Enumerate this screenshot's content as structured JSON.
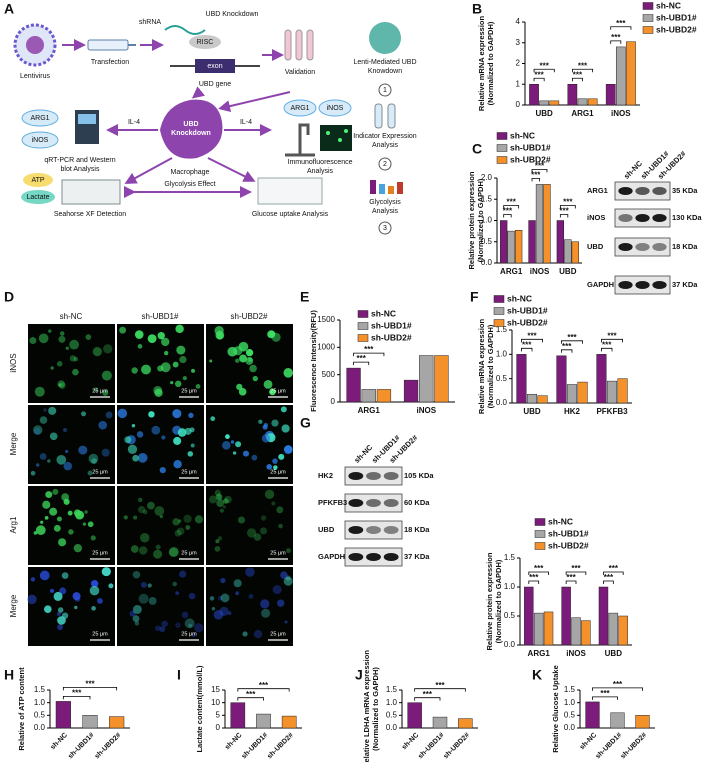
{
  "diagram": {
    "panel": "A",
    "lentivirus": "Lentivirus",
    "transfection": "Transfection",
    "shrna": "shRNA",
    "knockdown": "UBD Knockdown",
    "risc": "RISC",
    "exon": "exon",
    "gene": "UBD gene",
    "validation": "Validation",
    "steps": [
      {
        "number": "1",
        "lines": [
          "Lenti-Mediated UBD",
          "Knowdown"
        ]
      },
      {
        "number": "2",
        "lines": [
          "Indicator Expression",
          "Analysis"
        ]
      },
      {
        "number": "3",
        "lines": [
          "Glycolysis",
          "Analysis"
        ]
      }
    ],
    "cell_lines": [
      "UBD",
      "Knockdown"
    ],
    "macrophage": "Macrophage",
    "il4": "IL-4",
    "markers": [
      "ARG1",
      "iNOS"
    ],
    "qpcr": [
      "qRT-PCR and Western",
      "blot Analysis"
    ],
    "if": [
      "Immunofluorescence",
      "Analysis"
    ],
    "metabolites": [
      "ATP",
      "Lactate"
    ],
    "seahorse": "Seahorse XF Detection",
    "effect": "Glycolysis Effect",
    "glucose": "Glucose uptake Analysis"
  },
  "micrographs": {
    "panel": "D",
    "columns": [
      "sh-NC",
      "sh-UBD1#",
      "sh-UBD2#"
    ],
    "rows": [
      "iNOS",
      "Merge",
      "Arg1",
      "Merge"
    ],
    "scale_bar": "25 μm"
  },
  "blots": [
    {
      "lanes": [
        "sh-NC",
        "sh-UBD1#",
        "sh-UBD2#"
      ],
      "rows": [
        {
          "name": "ARG1",
          "size": "35 KDa"
        },
        {
          "name": "iNOS",
          "size": "130 KDa"
        },
        {
          "name": "UBD",
          "size": "18 KDa"
        },
        {
          "name": "GAPDH",
          "size": "37 KDa"
        }
      ]
    },
    {
      "lanes": [
        "sh-NC",
        "sh-UBD1#",
        "sh-UBD2#"
      ],
      "rows": [
        {
          "name": "HK2",
          "size": "105 KDa"
        },
        {
          "name": "PFKFB3",
          "size": "60 KDa"
        },
        {
          "name": "UBD",
          "size": "18 KDa"
        },
        {
          "name": "GAPDH",
          "size": "37 KDa"
        }
      ]
    }
  ],
  "chart_data": [
    {
      "panel": "B",
      "type": "bar",
      "ylabel": [
        "Relative mRNA expression",
        "(Normalized to GAPDH)"
      ],
      "categories": [
        "UBD",
        "ARG1",
        "iNOS"
      ],
      "series": [
        {
          "name": "sh-NC",
          "color": "#7b1c7b",
          "values": [
            1.0,
            1.0,
            1.0
          ]
        },
        {
          "name": "sh-UBD1#",
          "color": "#a6a6a6",
          "values": [
            0.2,
            0.3,
            2.8
          ]
        },
        {
          "name": "sh-UBD2#",
          "color": "#f5912a",
          "values": [
            0.2,
            0.3,
            3.05
          ]
        }
      ],
      "ylim": [
        0,
        4
      ],
      "yticks": [
        0,
        1,
        2,
        3,
        4
      ],
      "annotations": [
        {
          "text": "***",
          "category": 0,
          "bars": [
            0,
            1
          ]
        },
        {
          "text": "***",
          "category": 0,
          "bars": [
            0,
            2
          ]
        },
        {
          "text": "***",
          "category": 1,
          "bars": [
            0,
            1
          ]
        },
        {
          "text": "***",
          "category": 1,
          "bars": [
            0,
            2
          ]
        },
        {
          "text": "***",
          "category": 2,
          "bars": [
            0,
            1
          ]
        },
        {
          "text": "***",
          "category": 2,
          "bars": [
            0,
            2
          ]
        }
      ]
    },
    {
      "panel": "C",
      "type": "bar",
      "ylabel": [
        "Relative protein expression",
        "(Normalized to GAPDH)"
      ],
      "categories": [
        "ARG1",
        "iNOS",
        "UBD"
      ],
      "series": [
        {
          "name": "sh-NC",
          "color": "#7b1c7b",
          "values": [
            1.0,
            1.0,
            1.0
          ]
        },
        {
          "name": "sh-UBD1#",
          "color": "#a6a6a6",
          "values": [
            0.75,
            1.85,
            0.55
          ]
        },
        {
          "name": "sh-UBD2#",
          "color": "#f5912a",
          "values": [
            0.77,
            1.85,
            0.5
          ]
        }
      ],
      "ylim": [
        0,
        2
      ],
      "yticks": [
        {
          "value": 0,
          "label": "0.0"
        },
        0.5,
        {
          "value": 1,
          "label": "1.0"
        },
        1.5,
        {
          "value": 2,
          "label": "2.0"
        }
      ],
      "annotations": [
        {
          "text": "***",
          "category": 0,
          "bars": [
            0,
            1
          ]
        },
        {
          "text": "***",
          "category": 0,
          "bars": [
            0,
            2
          ]
        },
        {
          "text": "***",
          "category": 1,
          "bars": [
            0,
            1
          ]
        },
        {
          "text": "***",
          "category": 1,
          "bars": [
            0,
            2
          ]
        },
        {
          "text": "***",
          "category": 2,
          "bars": [
            0,
            1
          ]
        },
        {
          "text": "***",
          "category": 2,
          "bars": [
            0,
            2
          ]
        }
      ]
    },
    {
      "panel": "E",
      "type": "bar",
      "ylabel": [
        "Fluorescence Intensity(RFU)"
      ],
      "categories": [
        "ARG1",
        "iNOS"
      ],
      "series": [
        {
          "name": "sh-NC",
          "color": "#7b1c7b",
          "values": [
            620,
            400
          ]
        },
        {
          "name": "sh-UBD1#",
          "color": "#a6a6a6",
          "values": [
            230,
            850
          ]
        },
        {
          "name": "sh-UBD2#",
          "color": "#f5912a",
          "values": [
            230,
            850
          ]
        }
      ],
      "ylim": [
        0,
        1500
      ],
      "yticks": [
        0,
        500,
        1000,
        1500
      ],
      "annotations": [
        {
          "text": "***",
          "category": 0,
          "bars": [
            0,
            1
          ]
        },
        {
          "text": "***",
          "category": 0,
          "bars": [
            0,
            2
          ]
        }
      ]
    },
    {
      "panel": "F",
      "type": "bar",
      "ylabel": [
        "Relative mRNA expression",
        "(Normalized to GAPDH)"
      ],
      "categories": [
        "UBD",
        "HK2",
        "PFKFB3"
      ],
      "series": [
        {
          "name": "sh-NC",
          "color": "#7b1c7b",
          "values": [
            1.0,
            0.97,
            1.0
          ]
        },
        {
          "name": "sh-UBD1#",
          "color": "#a6a6a6",
          "values": [
            0.18,
            0.38,
            0.45
          ]
        },
        {
          "name": "sh-UBD2#",
          "color": "#f5912a",
          "values": [
            0.15,
            0.43,
            0.5
          ]
        }
      ],
      "ylim": [
        0,
        1.5
      ],
      "yticks": [
        {
          "value": 0,
          "label": "0.0"
        },
        0.5,
        {
          "value": 1,
          "label": "1.0"
        },
        1.5
      ],
      "annotations": [
        {
          "text": "***",
          "category": 0,
          "bars": [
            0,
            1
          ]
        },
        {
          "text": "***",
          "category": 0,
          "bars": [
            0,
            2
          ]
        },
        {
          "text": "***",
          "category": 1,
          "bars": [
            0,
            1
          ]
        },
        {
          "text": "***",
          "category": 1,
          "bars": [
            0,
            2
          ]
        },
        {
          "text": "***",
          "category": 2,
          "bars": [
            0,
            1
          ]
        },
        {
          "text": "***",
          "category": 2,
          "bars": [
            0,
            2
          ]
        }
      ]
    },
    {
      "panel": "G",
      "type": "bar",
      "ylabel": [
        "Relative protein expression",
        "(Normalized to GAPDH)"
      ],
      "categories": [
        "ARG1",
        "iNOS",
        "UBD"
      ],
      "series": [
        {
          "name": "sh-NC",
          "color": "#7b1c7b",
          "values": [
            1.0,
            1.0,
            1.0
          ]
        },
        {
          "name": "sh-UBD1#",
          "color": "#a6a6a6",
          "values": [
            0.55,
            0.47,
            0.55
          ]
        },
        {
          "name": "sh-UBD2#",
          "color": "#f5912a",
          "values": [
            0.57,
            0.42,
            0.5
          ]
        }
      ],
      "ylim": [
        0,
        1.5
      ],
      "yticks": [
        {
          "value": 0,
          "label": "0.0"
        },
        0.5,
        {
          "value": 1,
          "label": "1.0"
        },
        1.5
      ],
      "annotations": [
        {
          "text": "***",
          "category": 0,
          "bars": [
            0,
            1
          ]
        },
        {
          "text": "***",
          "category": 0,
          "bars": [
            0,
            2
          ]
        },
        {
          "text": "***",
          "category": 1,
          "bars": [
            0,
            1
          ]
        },
        {
          "text": "***",
          "category": 1,
          "bars": [
            0,
            2
          ]
        },
        {
          "text": "***",
          "category": 2,
          "bars": [
            0,
            1
          ]
        },
        {
          "text": "***",
          "category": 2,
          "bars": [
            0,
            2
          ]
        }
      ]
    },
    {
      "panel": "H",
      "type": "bar",
      "ylabel": [
        "Relative of ATP content"
      ],
      "categories": [
        "sh-NC",
        "sh-UBD1#",
        "sh-UBD2#"
      ],
      "values": [
        1.05,
        0.5,
        0.45
      ],
      "colors": [
        "#7b1c7b",
        "#a6a6a6",
        "#f5912a"
      ],
      "ylim": [
        0,
        1.5
      ],
      "yticks": [
        {
          "value": 0,
          "label": "0.0"
        },
        0.5,
        {
          "value": 1,
          "label": "1.0"
        },
        1.5
      ],
      "annotations": [
        {
          "text": "***",
          "bars": [
            0,
            1
          ]
        },
        {
          "text": "***",
          "bars": [
            0,
            2
          ]
        }
      ]
    },
    {
      "panel": "I",
      "type": "bar",
      "ylabel": [
        "Lactate content(mmol/L)"
      ],
      "categories": [
        "sh-NC",
        "sh-UBD1#",
        "sh-UBD2#"
      ],
      "values": [
        10,
        5.5,
        4.7
      ],
      "colors": [
        "#7b1c7b",
        "#a6a6a6",
        "#f5912a"
      ],
      "ylim": [
        0,
        15
      ],
      "yticks": [
        0,
        5,
        10,
        15
      ],
      "annotations": [
        {
          "text": "***",
          "bars": [
            0,
            1
          ]
        },
        {
          "text": "***",
          "bars": [
            0,
            2
          ]
        }
      ]
    },
    {
      "panel": "J",
      "type": "bar",
      "ylabel": [
        "Relative LDHA mRNA expression",
        "(Normalized to GAPDH)"
      ],
      "categories": [
        "sh-NC",
        "sh-UBD1#",
        "sh-UBD2#"
      ],
      "values": [
        1.0,
        0.43,
        0.37
      ],
      "colors": [
        "#7b1c7b",
        "#a6a6a6",
        "#f5912a"
      ],
      "ylim": [
        0,
        1.5
      ],
      "yticks": [
        {
          "value": 0,
          "label": "0.0"
        },
        0.5,
        {
          "value": 1,
          "label": "1.0"
        },
        1.5
      ],
      "annotations": [
        {
          "text": "***",
          "bars": [
            0,
            1
          ]
        },
        {
          "text": "***",
          "bars": [
            0,
            2
          ]
        }
      ]
    },
    {
      "panel": "K",
      "type": "bar",
      "ylabel": [
        "Relative Glucose Uptake"
      ],
      "categories": [
        "sh-NC",
        "sh-UBD1#",
        "sh-UBD2#"
      ],
      "values": [
        1.03,
        0.6,
        0.5
      ],
      "colors": [
        "#7b1c7b",
        "#a6a6a6",
        "#f5912a"
      ],
      "ylim": [
        0,
        1.5
      ],
      "yticks": [
        {
          "value": 0,
          "label": "0.0"
        },
        0.5,
        {
          "value": 1,
          "label": "1.0"
        },
        1.5
      ],
      "annotations": [
        {
          "text": "***",
          "bars": [
            0,
            1
          ]
        },
        {
          "text": "***",
          "bars": [
            0,
            2
          ]
        }
      ]
    }
  ]
}
